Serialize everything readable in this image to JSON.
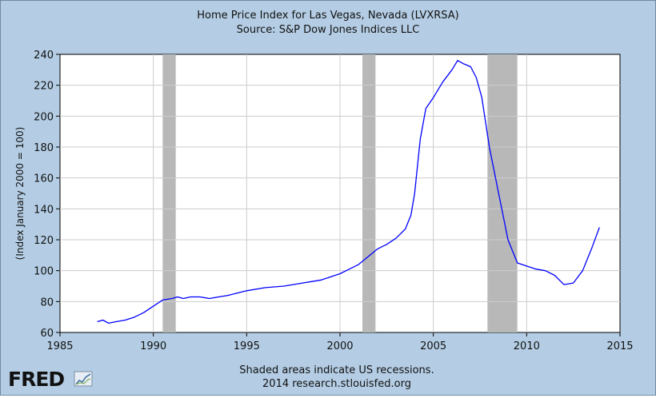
{
  "chart_data": {
    "type": "line",
    "title": "Home Price Index for Las Vegas, Nevada (LVXRSA)",
    "subtitle": "Source: S&P Dow Jones Indices LLC",
    "xlabel": "",
    "ylabel": "(Index January 2000 = 100)",
    "xlim": [
      1985,
      2015
    ],
    "ylim": [
      60,
      240
    ],
    "xticks": [
      "1985",
      "1990",
      "1995",
      "2000",
      "2005",
      "2010",
      "2015"
    ],
    "yticks": [
      "60",
      "80",
      "100",
      "120",
      "140",
      "160",
      "180",
      "200",
      "220",
      "240"
    ],
    "grid": true,
    "recessions": [
      {
        "start": 1990.5,
        "end": 1991.2
      },
      {
        "start": 2001.2,
        "end": 2001.9
      },
      {
        "start": 2007.9,
        "end": 2009.5
      }
    ],
    "series": [
      {
        "name": "LVXRSA",
        "color": "#0000ff",
        "x": [
          1987.0,
          1987.3,
          1987.6,
          1988.0,
          1988.5,
          1989.0,
          1989.5,
          1990.0,
          1990.5,
          1991.0,
          1991.3,
          1991.6,
          1992.0,
          1992.5,
          1993.0,
          1993.5,
          1994.0,
          1995.0,
          1996.0,
          1997.0,
          1998.0,
          1999.0,
          2000.0,
          2000.5,
          2001.0,
          2001.5,
          2002.0,
          2002.5,
          2003.0,
          2003.5,
          2003.8,
          2004.0,
          2004.3,
          2004.6,
          2005.0,
          2005.5,
          2006.0,
          2006.3,
          2006.6,
          2007.0,
          2007.3,
          2007.6,
          2008.0,
          2008.5,
          2009.0,
          2009.5,
          2010.0,
          2010.5,
          2011.0,
          2011.5,
          2012.0,
          2012.5,
          2013.0,
          2013.5,
          2013.9
        ],
        "values": [
          67,
          68,
          66,
          67,
          68,
          70,
          73,
          77,
          81,
          82,
          83,
          82,
          83,
          83,
          82,
          83,
          84,
          87,
          89,
          90,
          92,
          94,
          98,
          101,
          104,
          109,
          114,
          117,
          121,
          127,
          136,
          150,
          185,
          205,
          212,
          222,
          230,
          236,
          234,
          232,
          225,
          212,
          180,
          150,
          120,
          105,
          103,
          101,
          100,
          97,
          91,
          92,
          100,
          115,
          128
        ]
      }
    ]
  },
  "footer": {
    "note": "Shaded areas indicate US recessions.",
    "credit": "2014 research.stlouisfed.org"
  },
  "logo": {
    "text": "FRED"
  }
}
